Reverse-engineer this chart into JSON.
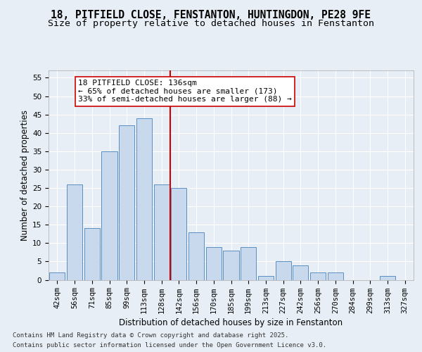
{
  "title_line1": "18, PITFIELD CLOSE, FENSTANTON, HUNTINGDON, PE28 9FE",
  "title_line2": "Size of property relative to detached houses in Fenstanton",
  "xlabel": "Distribution of detached houses by size in Fenstanton",
  "ylabel": "Number of detached properties",
  "footer_line1": "Contains HM Land Registry data © Crown copyright and database right 2025.",
  "footer_line2": "Contains public sector information licensed under the Open Government Licence v3.0.",
  "bin_labels": [
    "42sqm",
    "56sqm",
    "71sqm",
    "85sqm",
    "99sqm",
    "113sqm",
    "128sqm",
    "142sqm",
    "156sqm",
    "170sqm",
    "185sqm",
    "199sqm",
    "213sqm",
    "227sqm",
    "242sqm",
    "256sqm",
    "270sqm",
    "284sqm",
    "299sqm",
    "313sqm",
    "327sqm"
  ],
  "bar_values": [
    2,
    26,
    14,
    35,
    42,
    44,
    26,
    25,
    13,
    9,
    8,
    9,
    1,
    5,
    4,
    2,
    2,
    0,
    0,
    1,
    0
  ],
  "bar_color": "#c9d9ed",
  "bar_edge_color": "#5a8fc2",
  "vline_bin": 7,
  "vline_color": "#cc0000",
  "annotation_line1": "18 PITFIELD CLOSE: 136sqm",
  "annotation_line2": "← 65% of detached houses are smaller (173)",
  "annotation_line3": "33% of semi-detached houses are larger (88) →",
  "annotation_box_color": "#ffffff",
  "annotation_box_edge_color": "#cc0000",
  "ylim": [
    0,
    57
  ],
  "yticks": [
    0,
    5,
    10,
    15,
    20,
    25,
    30,
    35,
    40,
    45,
    50,
    55
  ],
  "bg_color": "#e8eef5",
  "plot_bg_color": "#e8eef5",
  "grid_color": "#ffffff",
  "title_fontsize": 10.5,
  "subtitle_fontsize": 9.5,
  "annotation_fontsize": 8,
  "axis_label_fontsize": 8.5,
  "tick_fontsize": 7.5
}
